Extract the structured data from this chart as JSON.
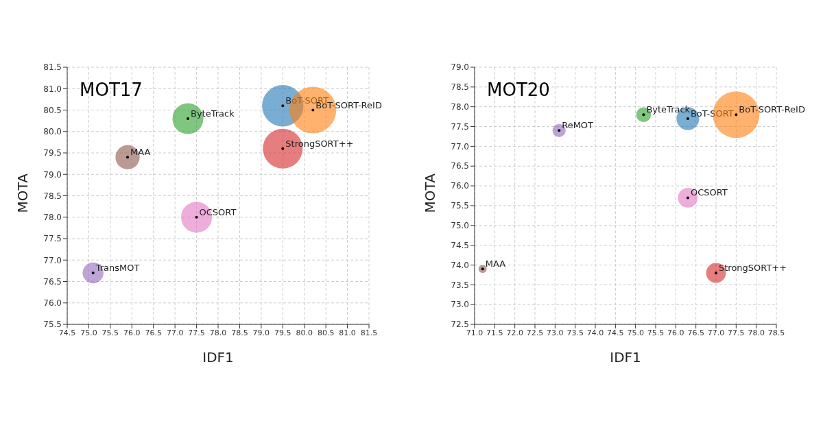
{
  "chart_data": [
    {
      "type": "bubble",
      "title": "MOT17",
      "xlabel": "IDF1",
      "ylabel": "MOTA",
      "xlim": [
        74.5,
        81.5
      ],
      "xticks": [
        74.5,
        {
          "value": 75,
          "label": "75.0"
        },
        75.5,
        {
          "value": 76,
          "label": "76.0"
        },
        76.5,
        {
          "value": 77,
          "label": "77.0"
        },
        77.5,
        {
          "value": 78,
          "label": "78.0"
        },
        78.5,
        {
          "value": 79,
          "label": "79.0"
        },
        79.5,
        {
          "value": 80,
          "label": "80.0"
        },
        80.5,
        {
          "value": 81,
          "label": "81.0"
        },
        81.5
      ],
      "ylim": [
        75.5,
        81.5
      ],
      "yticks": [
        75.5,
        {
          "value": 76,
          "label": "76.0"
        },
        76.5,
        {
          "value": 77,
          "label": "77.0"
        },
        77.5,
        {
          "value": 78,
          "label": "78.0"
        },
        78.5,
        {
          "value": 79,
          "label": "79.0"
        },
        79.5,
        {
          "value": 80,
          "label": "80.0"
        },
        80.5,
        {
          "value": 81,
          "label": "81.0"
        },
        81.5
      ],
      "grid": true,
      "marker": "circle",
      "series": [
        {
          "name": "BoT-SORT",
          "color": "#1f77b4",
          "x": [
            79.5
          ],
          "values": [
            80.6
          ],
          "sizes": [
            0.79
          ]
        },
        {
          "name": "BoT-SORT-ReID",
          "color": "#ff7f0e",
          "x": [
            80.2
          ],
          "values": [
            80.5
          ],
          "sizes": [
            1
          ]
        },
        {
          "name": "StrongSORT++",
          "color": "#d62728",
          "x": [
            79.5
          ],
          "values": [
            79.6
          ],
          "sizes": [
            0.73
          ]
        },
        {
          "name": "ByteTrack",
          "color": "#2ca02c",
          "x": [
            77.3
          ],
          "values": [
            80.3
          ],
          "sizes": [
            0.44
          ]
        },
        {
          "name": "MAA",
          "color": "#8c564b",
          "x": [
            75.9
          ],
          "values": [
            79.4
          ],
          "sizes": [
            0.27
          ]
        },
        {
          "name": "OCSORT",
          "color": "#e377c2",
          "x": [
            77.5
          ],
          "values": [
            78.0
          ],
          "sizes": [
            0.44
          ]
        },
        {
          "name": "TransMOT",
          "color": "#9467bd",
          "x": [
            75.1
          ],
          "values": [
            76.7
          ],
          "sizes": [
            0.2
          ]
        }
      ]
    },
    {
      "type": "bubble",
      "title": "MOT20",
      "xlabel": "IDF1",
      "ylabel": "MOTA",
      "xlim": [
        71,
        78.5
      ],
      "xticks": [
        {
          "value": 71,
          "label": "71.0"
        },
        71.5,
        {
          "value": 72,
          "label": "72.0"
        },
        72.5,
        {
          "value": 73,
          "label": "73.0"
        },
        73.5,
        {
          "value": 74,
          "label": "74.0"
        },
        74.5,
        {
          "value": 75,
          "label": "75.0"
        },
        75.5,
        {
          "value": 76,
          "label": "76.0"
        },
        76.5,
        {
          "value": 77,
          "label": "77.0"
        },
        77.5,
        {
          "value": 78,
          "label": "78.0"
        },
        78.5
      ],
      "ylim": [
        72.5,
        79
      ],
      "yticks": [
        72.5,
        {
          "value": 73,
          "label": "73.0"
        },
        73.5,
        {
          "value": 74,
          "label": "74.0"
        },
        74.5,
        {
          "value": 75,
          "label": "75.0"
        },
        75.5,
        {
          "value": 76,
          "label": "76.0"
        },
        76.5,
        {
          "value": 77,
          "label": "77.0"
        },
        77.5,
        {
          "value": 78,
          "label": "78.0"
        },
        78.5,
        {
          "value": 79,
          "label": "79.0"
        }
      ],
      "grid": true,
      "marker": "circle",
      "series": [
        {
          "name": "BoT-SORT",
          "color": "#1f77b4",
          "x": [
            76.3
          ],
          "values": [
            77.7
          ],
          "sizes": [
            0.24
          ]
        },
        {
          "name": "BoT-SORT-ReID",
          "color": "#ff7f0e",
          "x": [
            77.5
          ],
          "values": [
            77.8
          ],
          "sizes": [
            1
          ]
        },
        {
          "name": "StrongSORT++",
          "color": "#d62728",
          "x": [
            77.0
          ],
          "values": [
            73.8
          ],
          "sizes": [
            0.18
          ]
        },
        {
          "name": "ByteTrack",
          "color": "#2ca02c",
          "x": [
            75.2
          ],
          "values": [
            77.8
          ],
          "sizes": [
            0.1
          ]
        },
        {
          "name": "ReMOT",
          "color": "#9467bd",
          "x": [
            73.1
          ],
          "values": [
            77.4
          ],
          "sizes": [
            0.08
          ]
        },
        {
          "name": "OCSORT",
          "color": "#e377c2",
          "x": [
            76.3
          ],
          "values": [
            75.7
          ],
          "sizes": [
            0.18
          ]
        },
        {
          "name": "MAA",
          "color": "#8c564b",
          "x": [
            71.2
          ],
          "values": [
            73.9
          ],
          "sizes": [
            0.03
          ]
        }
      ]
    }
  ]
}
